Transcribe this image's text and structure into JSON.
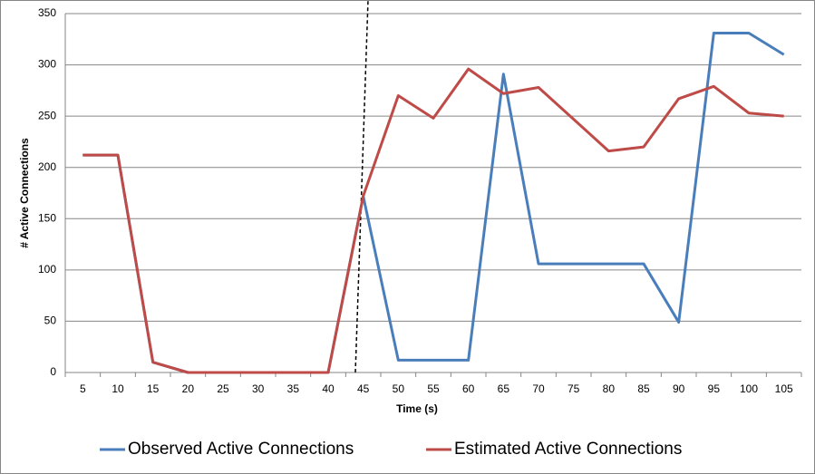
{
  "chart_data": {
    "type": "line",
    "xlabel": "Time (s)",
    "ylabel": "# Active Connections",
    "categories": [
      "5",
      "10",
      "15",
      "20",
      "25",
      "30",
      "35",
      "40",
      "45",
      "50",
      "55",
      "60",
      "65",
      "70",
      "75",
      "80",
      "85",
      "90",
      "95",
      "100",
      "105"
    ],
    "series": [
      {
        "name": "Observed Active Connections",
        "color": "#4a7ebb",
        "values": [
          212,
          212,
          10,
          0,
          0,
          0,
          0,
          0,
          172,
          12,
          12,
          12,
          291,
          106,
          106,
          106,
          106,
          49,
          331,
          331,
          310
        ]
      },
      {
        "name": "Estimated Active Connections",
        "color": "#be4b48",
        "values": [
          212,
          212,
          10,
          0,
          0,
          0,
          0,
          0,
          172,
          270,
          248,
          296,
          272,
          278,
          247,
          216,
          220,
          267,
          279,
          253,
          250
        ]
      }
    ],
    "ylim": [
      0,
      350
    ],
    "yticks": [
      0,
      50,
      100,
      150,
      200,
      250,
      300,
      350
    ],
    "grid": true,
    "legend": "bottom"
  }
}
